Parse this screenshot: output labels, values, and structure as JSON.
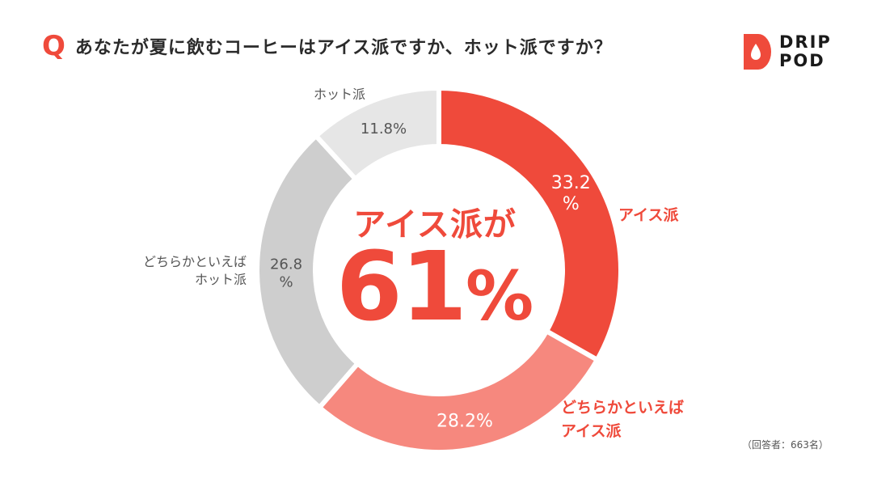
{
  "header": {
    "q_mark": "Q",
    "title": "あなたが夏に飲むコーヒーはアイス派ですか、ホット派ですか？"
  },
  "brand": {
    "line1": "DRIP",
    "line2": "POD",
    "color": "#ef4a3b"
  },
  "center": {
    "label": "アイス派が",
    "value": "61",
    "unit": "%"
  },
  "note": "（回答者：663名）",
  "chart_data": {
    "type": "pie",
    "donut": true,
    "title": "あなたが夏に飲むコーヒーはアイス派ですか、ホット派ですか？",
    "slices": [
      {
        "label": "アイス派",
        "value": 33.2,
        "value_text": "33.2\n%",
        "color": "#ef4a3b",
        "text_color": "#ffffff"
      },
      {
        "label": "どちらかといえば\nアイス派",
        "value": 28.2,
        "value_text": "28.2%",
        "color": "#f6887e",
        "text_color": "#ffffff"
      },
      {
        "label": "どちらかといえば\nホット派",
        "value": 26.8,
        "value_text": "26.8\n%",
        "color": "#cecece",
        "text_color": "#555555"
      },
      {
        "label": "ホット派",
        "value": 11.8,
        "value_text": "11.8%",
        "color": "#e6e6e6",
        "text_color": "#555555"
      }
    ],
    "summary": {
      "label": "アイス派が",
      "value": 61,
      "unit": "%"
    }
  }
}
